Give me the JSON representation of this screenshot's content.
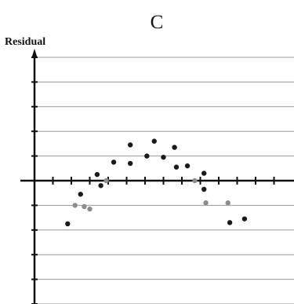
{
  "chart_data": {
    "type": "scatter",
    "panel_label": "C",
    "title": "",
    "xlabel": "",
    "ylabel": "Residual",
    "xlim": [
      0,
      14
    ],
    "ylim": [
      -5,
      5
    ],
    "x_ticks": [
      1,
      2,
      3,
      4,
      5,
      6,
      7,
      8,
      9,
      10,
      11,
      12,
      13
    ],
    "y_ticks": [
      -5,
      -4,
      -3,
      -2,
      -1,
      0,
      1,
      2,
      3,
      4,
      5
    ],
    "grid": true,
    "legend": false,
    "series": [
      {
        "color": "#1a1a1a",
        "points": [
          {
            "x": 1.8,
            "y": -1.75
          },
          {
            "x": 2.5,
            "y": -0.55
          },
          {
            "x": 3.4,
            "y": 0.25
          },
          {
            "x": 3.6,
            "y": -0.2
          },
          {
            "x": 4.3,
            "y": 0.75
          },
          {
            "x": 5.2,
            "y": 1.45
          },
          {
            "x": 5.2,
            "y": 0.7
          },
          {
            "x": 6.1,
            "y": 1.0
          },
          {
            "x": 6.5,
            "y": 1.6
          },
          {
            "x": 7.0,
            "y": 0.95
          },
          {
            "x": 7.6,
            "y": 1.35
          },
          {
            "x": 7.7,
            "y": 0.55
          },
          {
            "x": 8.3,
            "y": 0.6
          },
          {
            "x": 9.2,
            "y": 0.3
          },
          {
            "x": 9.2,
            "y": -0.35
          },
          {
            "x": 10.6,
            "y": -1.7
          },
          {
            "x": 11.4,
            "y": -1.55
          }
        ]
      },
      {
        "color": "#8c8c8c",
        "points": [
          {
            "x": 2.2,
            "y": -1.0
          },
          {
            "x": 2.7,
            "y": -1.05
          },
          {
            "x": 3.0,
            "y": -1.15
          },
          {
            "x": 3.9,
            "y": 0.0
          },
          {
            "x": 8.7,
            "y": 0.0
          },
          {
            "x": 9.3,
            "y": -0.9
          },
          {
            "x": 10.5,
            "y": -0.9
          }
        ]
      }
    ]
  }
}
